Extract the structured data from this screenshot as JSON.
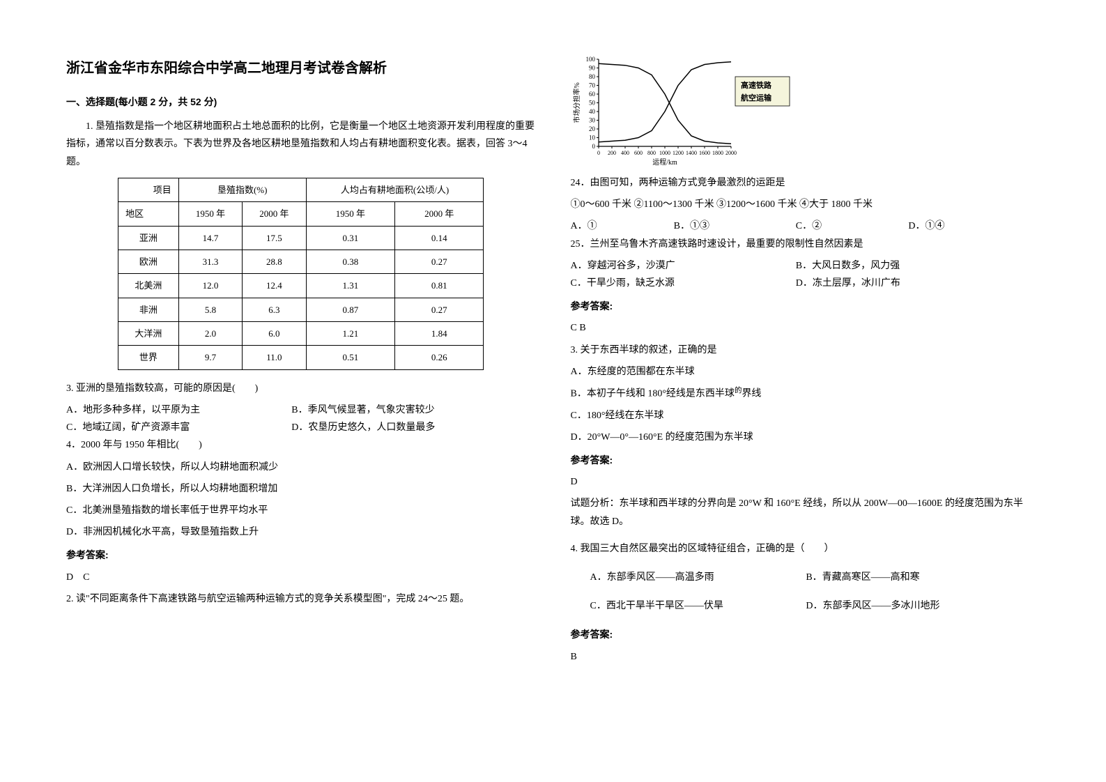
{
  "title": "浙江省金华市东阳综合中学高二地理月考试卷含解析",
  "part1_title": "一、选择题(每小题 2 分，共 52 分)",
  "q1": {
    "stem_a": "1. 垦殖指数是指一个地区耕地面积占土地总面积的比例，它是衡量一个地区土地资源开发利用程度的重要指标，通常以百分数表示。下表为世界及各地区耕地垦殖指数和人均占有耕地面积变化表。据表，回答 3～4 题。",
    "q3": "3. 亚洲的垦殖指数较高，可能的原因是(　　)",
    "q3_a": "A．地形多种多样，以平原为主",
    "q3_b": "B．季风气候显著，气象灾害较少",
    "q3_c": "C．地域辽阔，矿产资源丰富",
    "q3_d": "D．农垦历史悠久，人口数量最多",
    "q4": "4．2000 年与 1950 年相比(　　)",
    "q4_a": "A．欧洲因人口增长较快，所以人均耕地面积减少",
    "q4_b": "B．大洋洲因人口负增长，所以人均耕地面积增加",
    "q4_c": "C．北美洲垦殖指数的增长率低于世界平均水平",
    "q4_d": "D．非洲因机械化水平高，导致垦殖指数上升",
    "ans_label": "参考答案:",
    "ans": "D　C"
  },
  "table": {
    "h_item": "项目",
    "h_kz": "垦殖指数(%)",
    "h_rj": "人均占有耕地面积(公顷/人)",
    "h_region": "地区",
    "y1950": "1950 年",
    "y2000": "2000 年",
    "rows": [
      {
        "r": "亚洲",
        "a": "14.7",
        "b": "17.5",
        "c": "0.31",
        "d": "0.14"
      },
      {
        "r": "欧洲",
        "a": "31.3",
        "b": "28.8",
        "c": "0.38",
        "d": "0.27"
      },
      {
        "r": "北美洲",
        "a": "12.0",
        "b": "12.4",
        "c": "1.31",
        "d": "0.81"
      },
      {
        "r": "非洲",
        "a": "5.8",
        "b": "6.3",
        "c": "0.87",
        "d": "0.27"
      },
      {
        "r": "大洋洲",
        "a": "2.0",
        "b": "6.0",
        "c": "1.21",
        "d": "1.84"
      },
      {
        "r": "世界",
        "a": "9.7",
        "b": "11.0",
        "c": "0.51",
        "d": "0.26"
      }
    ]
  },
  "q2": {
    "stem": "2. 读\"不同距离条件下高速铁路与航空运输两种运输方式的竞争关系模型图\"，完成 24～25 题。"
  },
  "chart": {
    "type": "line",
    "ylabel": "市场分担率%",
    "xlabel": "运程/km",
    "x_min": 0,
    "x_max": 2000,
    "x_step": 200,
    "y_min": 0,
    "y_max": 100,
    "y_step": 10,
    "series": [
      {
        "name": "高速铁路",
        "color": "#000000",
        "x": [
          0,
          200,
          400,
          600,
          800,
          1000,
          1200,
          1400,
          1600,
          1800,
          2000
        ],
        "y": [
          95,
          94,
          93,
          90,
          82,
          60,
          30,
          12,
          6,
          4,
          3
        ]
      },
      {
        "name": "航空运输",
        "color": "#000000",
        "x": [
          0,
          200,
          400,
          600,
          800,
          1000,
          1200,
          1400,
          1600,
          1800,
          2000
        ],
        "y": [
          5,
          6,
          7,
          10,
          18,
          40,
          70,
          88,
          94,
          96,
          97
        ]
      }
    ],
    "legend_labels": {
      "rail": "高速铁路",
      "air": "航空运输"
    },
    "axis_color": "#000000",
    "background_color": "#ffffff",
    "legend_box_fill": "#f5f5dc",
    "title_fontsize": 12,
    "label_fontsize": 11
  },
  "q24": {
    "stem": "24．由图可知，两种运输方式竞争最激烈的运距是",
    "c1": "①0～600 千米",
    "c2": "②1100～1300 千米",
    "c3": "③1200～1600 千米",
    "c4": "④大于 1800 千米",
    "a": "A．①",
    "b": "B．①③",
    "c": "C．②",
    "d": "D．①④"
  },
  "q25": {
    "stem": "25．兰州至乌鲁木齐高速铁路时速设计，最重要的限制性自然因素是",
    "a": "A．穿越河谷多，沙漠广",
    "b": "B．大风日数多，风力强",
    "c": "C．干旱少雨，缺乏水源",
    "d": "D．冻土层厚，冰川广布",
    "ans_label": "参考答案:",
    "ans": "C B"
  },
  "q3b": {
    "stem": "3. 关于东西半球的叙述，正确的是",
    "a": "A．东经度的范围都在东半球",
    "b": "B．本初子午线和 180°经线是东西半球",
    "b_sup": "的",
    "b_tail": "界线",
    "c": "C．180°经线在东半球",
    "d": "D．20°W—0°—160°E 的经度范围为东半球",
    "ans_label": "参考答案:",
    "ans": "D",
    "analysis": "试题分析：东半球和西半球的分界向是 20°W 和 160°E 经线，所以从 200W—00—1600E 的经度范围为东半球。故选 D。"
  },
  "q4b": {
    "stem": "4. 我国三大自然区最突出的区域特征组合，正确的是（　　）",
    "a": "A．东部季风区——高温多雨",
    "b": "B．青藏高寒区——高和寒",
    "c": "C．西北干旱半干旱区——伏旱",
    "d": "D．东部季风区——多冰川地形",
    "ans_label": "参考答案:",
    "ans": "B"
  }
}
